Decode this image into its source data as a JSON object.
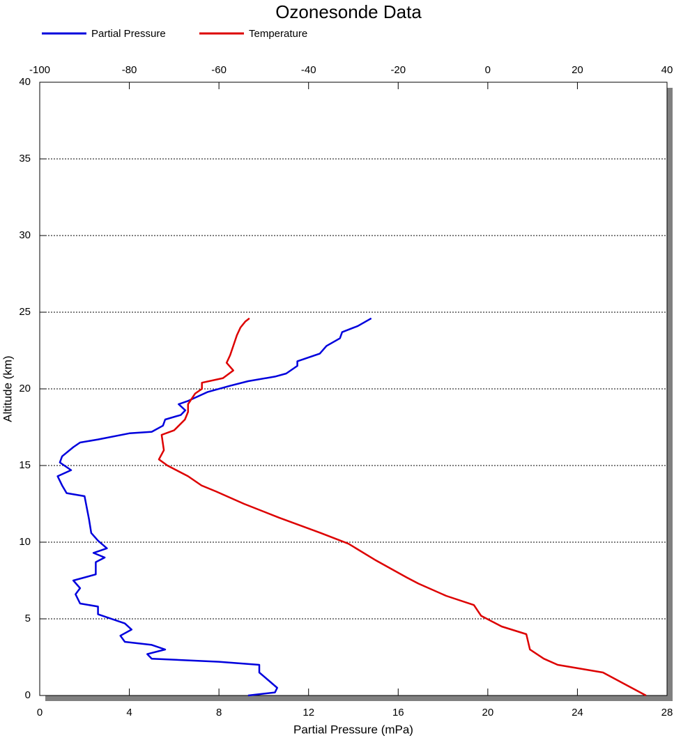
{
  "chart_data": {
    "type": "line",
    "title": "Ozonesonde Data",
    "xlabel": "Partial Pressure (mPa)",
    "ylabel": "Altitude (km)",
    "xlim": [
      0,
      28
    ],
    "xticks": [
      0,
      4,
      8,
      12,
      16,
      20,
      24,
      28
    ],
    "x2lim": [
      -100,
      40
    ],
    "x2ticks": [
      -100,
      -80,
      -60,
      -40,
      -20,
      0,
      20,
      40
    ],
    "ylim": [
      0,
      40
    ],
    "yticks": [
      0,
      5,
      10,
      15,
      20,
      25,
      30,
      35,
      40
    ],
    "grid": true,
    "legend": "top-left",
    "series": [
      {
        "name": "Partial Pressure",
        "color": "#0000dd",
        "x": [
          9.3,
          10.5,
          10.6,
          10.2,
          9.8,
          9.8,
          8,
          5,
          4.8,
          5.6,
          5,
          3.8,
          3.6,
          4.1,
          3.8,
          2.6,
          2.6,
          1.8,
          1.6,
          1.8,
          1.5,
          2.5,
          2.5,
          2.5,
          2.9,
          2.4,
          3,
          2.6,
          2.3,
          2.2,
          2,
          1.2,
          1,
          0.8,
          1.4,
          0.9,
          1,
          1.5,
          1.8,
          2.6,
          4,
          5,
          5.5,
          5.6,
          6.3,
          6.5,
          6.2,
          6.6,
          7.5,
          8.5,
          9.3,
          10.5,
          11,
          11.5,
          11.5,
          12.5,
          12.8,
          13.4,
          13.5,
          14.2,
          14.8
        ],
        "y": [
          0,
          0.2,
          0.5,
          1,
          1.5,
          2,
          2.2,
          2.4,
          2.7,
          3,
          3.3,
          3.5,
          3.9,
          4.3,
          4.7,
          5.3,
          5.8,
          6,
          6.6,
          7,
          7.5,
          7.9,
          8.3,
          8.7,
          9,
          9.3,
          9.6,
          10.1,
          10.6,
          11.5,
          13,
          13.2,
          13.7,
          14.3,
          14.7,
          15.2,
          15.6,
          16.2,
          16.5,
          16.7,
          17.1,
          17.2,
          17.6,
          18,
          18.3,
          18.6,
          19,
          19.2,
          19.8,
          20.2,
          20.5,
          20.8,
          21,
          21.5,
          21.8,
          22.3,
          22.8,
          23.3,
          23.7,
          24.1,
          24.6
        ]
      },
      {
        "name": "Temperature",
        "color": "#dd0000",
        "axis": "x2",
        "x": [
          35.3,
          25.7,
          15.6,
          12.5,
          9.4,
          8.6,
          3.1,
          -1.5,
          -3.1,
          -9.3,
          -15.5,
          -18.1,
          -24.9,
          -31.1,
          -37.3,
          -46.6,
          -54.4,
          -60.6,
          -63.9,
          -66.9,
          -71.5,
          -73.4,
          -72.3,
          -72.8,
          -70,
          -67.6,
          -66.9,
          -66.9,
          -65.3,
          -63.8,
          -63.8,
          -59.1,
          -56.8,
          -58.3,
          -57.5,
          -56.8,
          -56,
          -55.2,
          -54.1,
          -53.2
        ],
        "y": [
          0,
          1.5,
          2,
          2.4,
          3,
          4,
          4.5,
          5.2,
          5.9,
          6.5,
          7.3,
          7.7,
          8.8,
          9.9,
          10.6,
          11.6,
          12.5,
          13.3,
          13.7,
          14.3,
          15,
          15.4,
          16,
          17,
          17.3,
          18,
          18.5,
          19,
          19.7,
          20,
          20.4,
          20.7,
          21.2,
          21.7,
          22.2,
          22.8,
          23.5,
          24,
          24.4,
          24.6
        ]
      }
    ]
  }
}
